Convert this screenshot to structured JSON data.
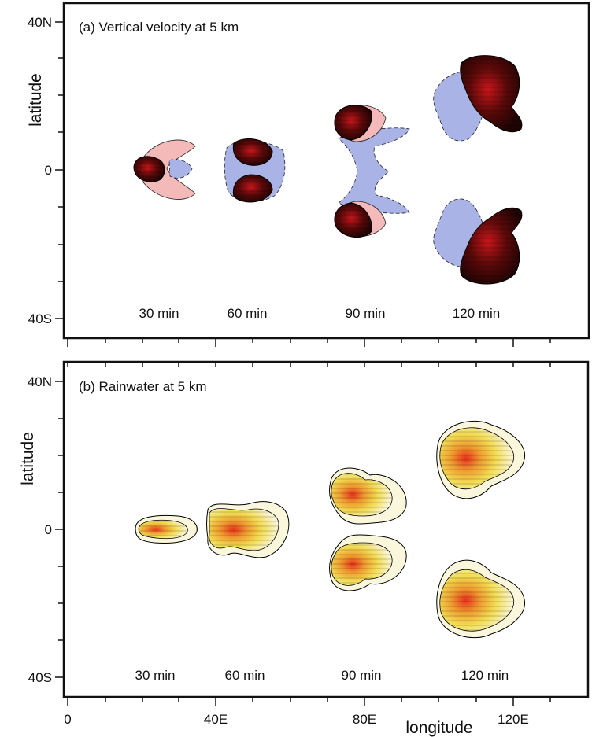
{
  "figure": {
    "panel_a": {
      "title": "(a) Vertical velocity at 5 km",
      "ylabel": "latitude",
      "yticks": [
        "40N",
        "0",
        "40S"
      ],
      "time_labels": [
        "30 min",
        "60 min",
        "90 min",
        "120 min"
      ]
    },
    "panel_b": {
      "title": "(b) Rainwater at 5 km",
      "ylabel": "latitude",
      "yticks": [
        "40N",
        "0",
        "40S"
      ],
      "time_labels": [
        "30 min",
        "60 min",
        "90 min",
        "120 min"
      ]
    },
    "xaxis": {
      "label": "longitude",
      "ticks": [
        "0",
        "40E",
        "80E",
        "120E"
      ]
    },
    "colors": {
      "updraft_dark": "#2a0505",
      "updraft_core": "#b51414",
      "updraft_light": "#f4b9b9",
      "downdraft": "#aab3e6",
      "rain_outer": "#fbf7dc",
      "rain_mid": "#f2dc52",
      "rain_orange": "#ef9a2f",
      "rain_core": "#e8301d"
    }
  }
}
